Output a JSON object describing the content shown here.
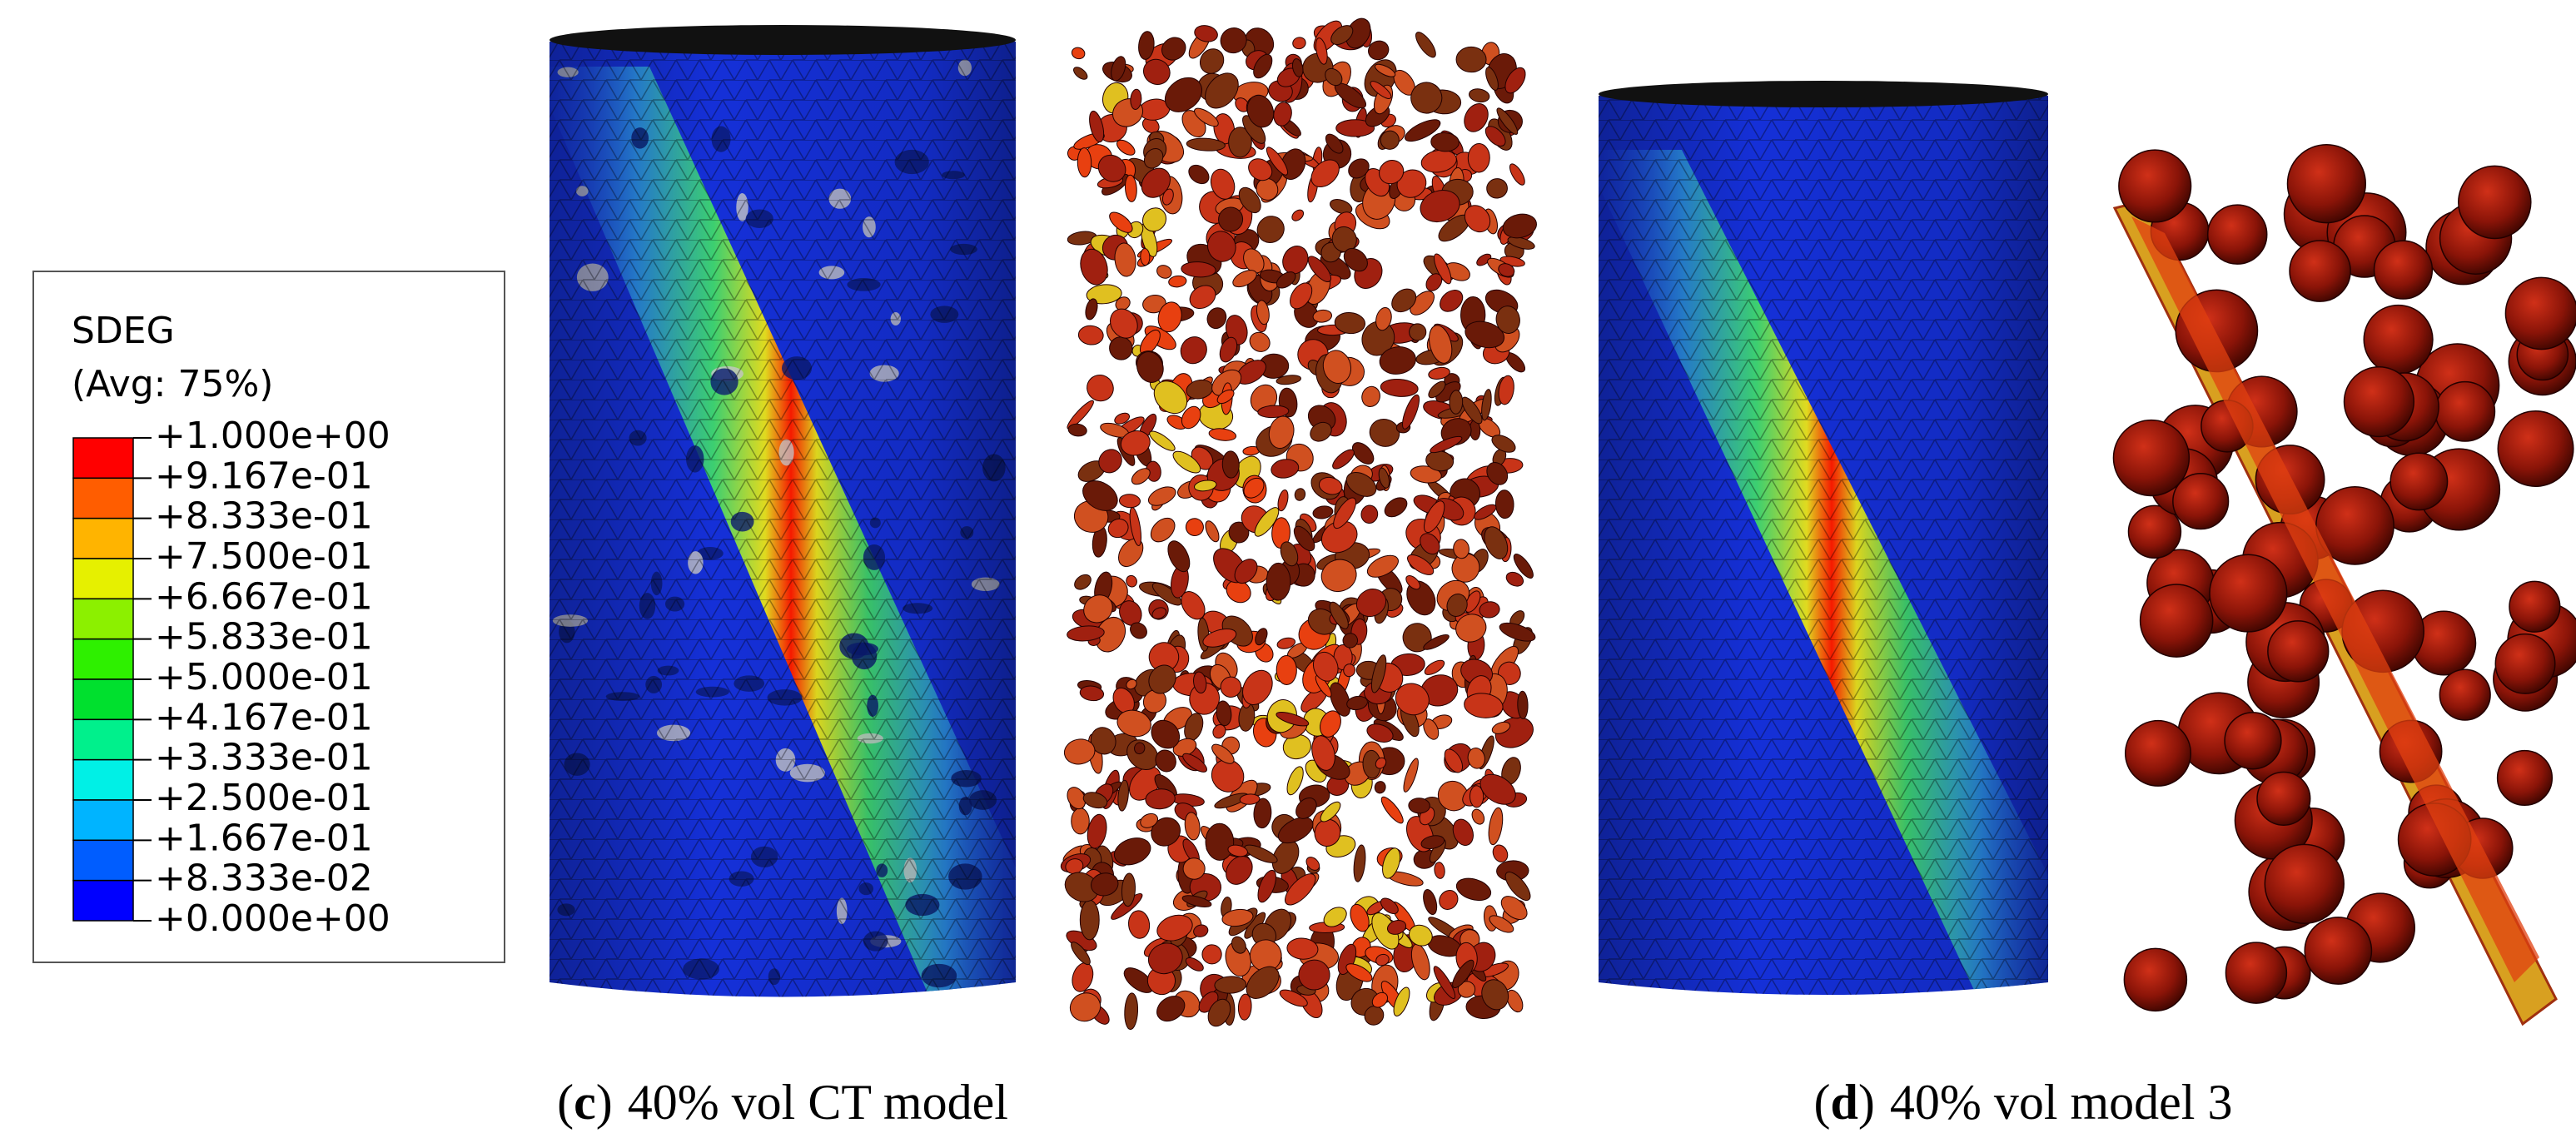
{
  "legend": {
    "title": "SDEG",
    "subtitle": "(Avg: 75%)",
    "labels": [
      "+1.000e+00",
      "+9.167e-01",
      "+8.333e-01",
      "+7.500e-01",
      "+6.667e-01",
      "+5.833e-01",
      "+5.000e-01",
      "+4.167e-01",
      "+3.333e-01",
      "+2.500e-01",
      "+1.667e-01",
      "+8.333e-02",
      "+0.000e+00"
    ],
    "colors": [
      "#ff0000",
      "#ff5d00",
      "#ffb400",
      "#e6f000",
      "#8cf000",
      "#2ef000",
      "#00e02e",
      "#00f08c",
      "#00f0e6",
      "#00b4ff",
      "#005dff",
      "#0000ff"
    ]
  },
  "captions": [
    {
      "open": "(",
      "letter": "c",
      "close": ")",
      "text": "40% vol CT model"
    },
    {
      "open": "(",
      "letter": "d",
      "close": ")",
      "text": "40% vol model 3"
    }
  ]
}
